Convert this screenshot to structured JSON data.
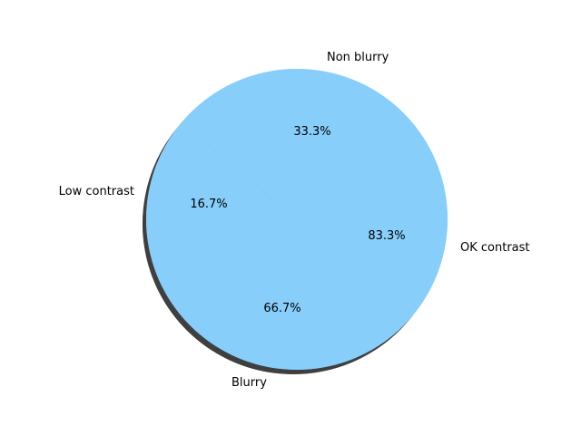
{
  "chart_data": [
    {
      "type": "pie",
      "categories": [
        "Low contrast",
        "OK contrast"
      ],
      "values": [
        16.7,
        83.3
      ],
      "data_labels": [
        "16.7%",
        "83.3%"
      ],
      "colors": [
        "#f08080",
        "#87cefa"
      ],
      "shadow": true
    },
    {
      "type": "pie",
      "categories": [
        "Non blurry",
        "Blurry"
      ],
      "values": [
        33.3,
        66.7
      ],
      "data_labels": [
        "33.3%",
        "66.7%"
      ],
      "colors": [
        "#87cefa",
        "#87cefa"
      ],
      "shadow": true
    }
  ]
}
